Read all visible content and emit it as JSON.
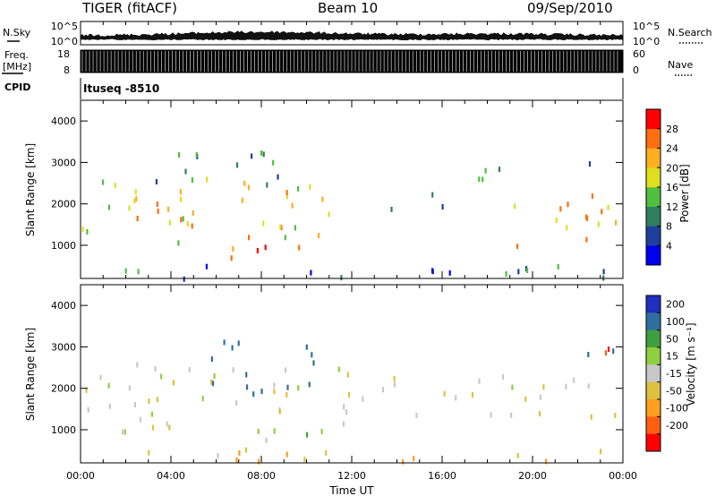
{
  "header": {
    "station": "TIGER (fitACF)",
    "beam": "Beam 10",
    "date": "09/Sep/2010"
  },
  "top_panels": {
    "nsky_label": "N.Sky",
    "nsky_ticks": [
      "10^5",
      "10^0"
    ],
    "nsearch_label": "N.Search",
    "nsearch_ticks": [
      "10^5",
      "10^0"
    ],
    "freq_label": "Freq.",
    "freq_unit": "[MHz]",
    "freq_ticks": [
      "18",
      "8"
    ],
    "nave_label": "Nave",
    "nave_ticks": [
      "60",
      "0"
    ],
    "cpid_label": "CPID",
    "cpid_value": "Ituseq  -8510"
  },
  "colors": {
    "power_scale": [
      "#0000ee",
      "#1f3f9f",
      "#2f7f5f",
      "#4fbf3f",
      "#dfdf1f",
      "#ffaf1f",
      "#ff6f0f",
      "#ff0000"
    ],
    "velocity_scale": [
      "#1f2fbf",
      "#2f6f9f",
      "#3f9f3f",
      "#8fcf3f",
      "#c8c8c8",
      "#e0c040",
      "#ff9f1f",
      "#ff5f0f",
      "#ff0000"
    ]
  },
  "chart_data": [
    {
      "type": "heatmap",
      "name": "power",
      "ylabel": "Slant Range [km]",
      "yticks": [
        "1000",
        "2000",
        "3000",
        "4000"
      ],
      "ylim": [
        200,
        4500
      ],
      "xlim": [
        0,
        24
      ],
      "colorbar_label": "Power [dB]",
      "colorbar_ticks": [
        "4",
        "8",
        "12",
        "16",
        "20",
        "24",
        "28"
      ],
      "colorbar_range": [
        0,
        32
      ],
      "regions": [
        {
          "t0": 0.0,
          "t1": 11.0,
          "r0": 950,
          "r1": 2700,
          "peak": 20
        },
        {
          "t0": 1.0,
          "t1": 5.0,
          "r0": 1300,
          "r1": 2200,
          "peak": 24
        },
        {
          "t0": 6.5,
          "t1": 11.0,
          "r0": 700,
          "r1": 1150,
          "peak": 28
        },
        {
          "t0": 1.5,
          "t1": 10.5,
          "r0": 2500,
          "r1": 3300,
          "peak": 10
        },
        {
          "t0": 11.0,
          "t1": 16.5,
          "r0": 1900,
          "r1": 2400,
          "peak": 12
        },
        {
          "t0": 16.5,
          "t1": 19.0,
          "r0": 1700,
          "r1": 3200,
          "peak": 14
        },
        {
          "t0": 19.0,
          "t1": 24.0,
          "r0": 1000,
          "r1": 2500,
          "peak": 22
        },
        {
          "t0": 20.5,
          "t1": 24.0,
          "r0": 2500,
          "r1": 3300,
          "peak": 10
        },
        {
          "t0": 0.0,
          "t1": 24.0,
          "r0": 220,
          "r1": 650,
          "peak": 8
        }
      ]
    },
    {
      "type": "heatmap",
      "name": "velocity",
      "ylabel": "Slant Range [km]",
      "yticks": [
        "1000",
        "2000",
        "3000",
        "4000"
      ],
      "ylim": [
        200,
        4500
      ],
      "xlim": [
        0,
        24
      ],
      "xlabel": "Time UT",
      "xticks": [
        "00:00",
        "04:00",
        "08:00",
        "12:00",
        "16:00",
        "20:00",
        "00:00"
      ],
      "colorbar_label": "Velocity [m s⁻¹]",
      "colorbar_ticks": [
        "200",
        "100",
        "50",
        "15",
        "-15",
        "-50",
        "-100",
        "-200"
      ],
      "colorbar_range": [
        -250,
        250
      ],
      "regions": [
        {
          "t0": 0.0,
          "t1": 11.5,
          "r0": 1000,
          "r1": 2700,
          "peak": 0
        },
        {
          "t0": 5.5,
          "t1": 10.5,
          "r0": 1800,
          "r1": 3200,
          "peak": 150
        },
        {
          "t0": 6.5,
          "t1": 11.0,
          "r0": 700,
          "r1": 1150,
          "peak": 30
        },
        {
          "t0": 11.5,
          "t1": 20.0,
          "r0": 1200,
          "r1": 2500,
          "peak": 0
        },
        {
          "t0": 19.5,
          "t1": 24.0,
          "r0": 1000,
          "r1": 2500,
          "peak": -10
        },
        {
          "t0": 21.0,
          "t1": 24.0,
          "r0": 2800,
          "r1": 3200,
          "peak": 120
        },
        {
          "t0": 22.5,
          "t1": 24.0,
          "r0": 2900,
          "r1": 3300,
          "peak": -200
        },
        {
          "t0": 0.0,
          "t1": 24.0,
          "r0": 220,
          "r1": 600,
          "peak": -40
        }
      ]
    }
  ]
}
